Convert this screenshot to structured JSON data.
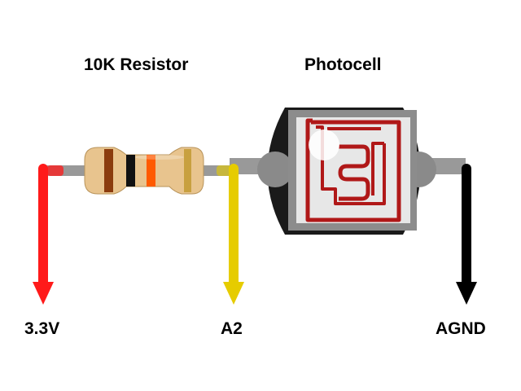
{
  "labels": {
    "resistor": "10K Resistor",
    "photocell": "Photocell",
    "vcc": "3.3V",
    "analog_pin": "A2",
    "ground": "AGND"
  },
  "colors": {
    "vcc_wire": "#ff1a1a",
    "signal_wire": "#e6cc00",
    "ground_wire": "#000000",
    "lead": "#999999",
    "resistor_body": "#e8c48e",
    "photocell_trace": "#b01818",
    "photocell_body": "#1a1a1a"
  },
  "resistor_bands": [
    "brown",
    "black",
    "orange",
    "gold"
  ],
  "band_colors": [
    "#8b3c0e",
    "#111111",
    "#ff5a00",
    "#c8a040"
  ]
}
